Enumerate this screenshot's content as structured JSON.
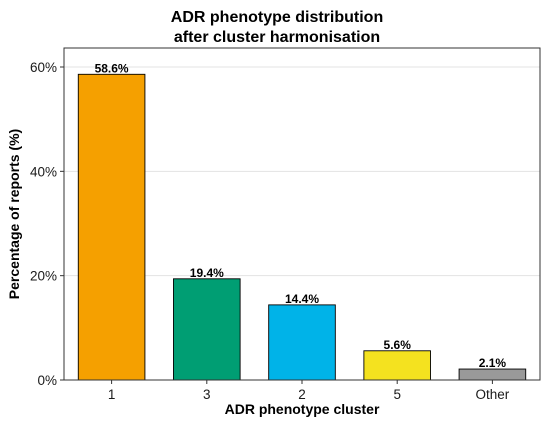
{
  "chart_data": {
    "type": "bar",
    "title": [
      "ADR phenotype distribution",
      "after cluster harmonisation"
    ],
    "xlabel": "ADR phenotype cluster",
    "ylabel": "Percentage of reports (%)",
    "categories": [
      "1",
      "3",
      "2",
      "5",
      "Other"
    ],
    "values": [
      58.6,
      19.4,
      14.4,
      5.6,
      2.1
    ],
    "data_labels": [
      "58.6%",
      "19.4%",
      "14.4%",
      "5.6%",
      "2.1%"
    ],
    "colors": [
      "#F5A000",
      "#009E73",
      "#00B3E8",
      "#F4E21F",
      "#999999"
    ],
    "ylim": [
      0,
      60
    ],
    "yticks": [
      0,
      20,
      40,
      60
    ],
    "ytick_labels": [
      "0%",
      "20%",
      "40%",
      "60%"
    ],
    "grid": "horizontal major lines",
    "legend": "none"
  }
}
